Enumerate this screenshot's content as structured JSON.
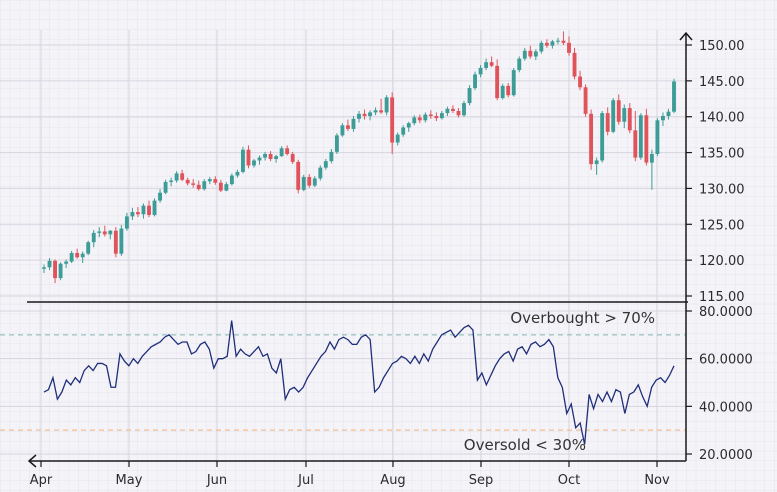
{
  "chart_data": [
    {
      "type": "candlestick",
      "colors": {
        "up": "#3d9c96",
        "down": "#e0535b"
      },
      "ylim": [
        115,
        152
      ],
      "y_ticks": [
        "150.00",
        "145.00",
        "140.00",
        "135.00",
        "130.00",
        "125.00",
        "120.00",
        "115.00"
      ],
      "x_ticks": [
        "Apr",
        "May",
        "Jun",
        "Jul",
        "Aug",
        "Sep",
        "Oct",
        "Nov"
      ],
      "grid": true,
      "candles": [
        [
          118.8,
          119.4,
          118.2,
          119.0
        ],
        [
          119.0,
          120.3,
          118.6,
          119.9
        ],
        [
          119.9,
          120.1,
          116.8,
          117.5
        ],
        [
          117.5,
          119.7,
          117.2,
          119.5
        ],
        [
          119.5,
          120.1,
          118.9,
          119.8
        ],
        [
          119.8,
          121.3,
          119.6,
          121.0
        ],
        [
          121.0,
          121.6,
          120.2,
          120.4
        ],
        [
          120.4,
          121.2,
          119.6,
          120.9
        ],
        [
          120.9,
          122.7,
          120.7,
          122.5
        ],
        [
          122.5,
          124.2,
          121.8,
          123.8
        ],
        [
          123.8,
          124.6,
          123.2,
          124.0
        ],
        [
          124.0,
          124.8,
          123.3,
          123.6
        ],
        [
          123.6,
          124.2,
          122.9,
          124.1
        ],
        [
          124.1,
          124.6,
          120.4,
          120.9
        ],
        [
          120.9,
          124.9,
          120.6,
          124.4
        ],
        [
          124.4,
          126.6,
          124.1,
          126.1
        ],
        [
          126.1,
          127.3,
          125.6,
          126.7
        ],
        [
          126.7,
          127.4,
          126.0,
          126.4
        ],
        [
          126.4,
          127.9,
          125.8,
          127.6
        ],
        [
          127.6,
          128.3,
          126.0,
          126.3
        ],
        [
          126.3,
          128.6,
          126.1,
          128.3
        ],
        [
          128.3,
          129.9,
          128.0,
          129.4
        ],
        [
          129.4,
          131.2,
          129.2,
          130.9
        ],
        [
          130.9,
          131.5,
          130.3,
          131.1
        ],
        [
          131.1,
          132.4,
          130.8,
          132.1
        ],
        [
          132.1,
          132.6,
          131.0,
          131.2
        ],
        [
          131.2,
          131.5,
          130.4,
          130.7
        ],
        [
          130.7,
          131.3,
          130.1,
          130.5
        ],
        [
          130.5,
          131.1,
          129.7,
          129.9
        ],
        [
          129.9,
          131.3,
          129.7,
          131.0
        ],
        [
          131.0,
          131.6,
          130.6,
          131.3
        ],
        [
          131.3,
          131.7,
          130.5,
          130.8
        ],
        [
          130.8,
          131.2,
          129.5,
          129.7
        ],
        [
          129.7,
          130.9,
          129.6,
          130.6
        ],
        [
          130.6,
          132.1,
          130.4,
          131.8
        ],
        [
          131.8,
          132.6,
          131.5,
          132.3
        ],
        [
          132.3,
          135.8,
          132.1,
          135.4
        ],
        [
          135.4,
          136.0,
          132.8,
          133.2
        ],
        [
          133.2,
          134.1,
          132.9,
          133.9
        ],
        [
          133.9,
          134.6,
          133.3,
          134.3
        ],
        [
          134.3,
          135.1,
          133.9,
          134.8
        ],
        [
          134.8,
          135.2,
          133.8,
          134.1
        ],
        [
          134.1,
          134.7,
          133.6,
          134.5
        ],
        [
          134.5,
          135.9,
          134.4,
          135.6
        ],
        [
          135.6,
          136.0,
          134.6,
          134.8
        ],
        [
          134.8,
          135.1,
          133.4,
          133.7
        ],
        [
          133.7,
          134.0,
          129.3,
          129.8
        ],
        [
          129.8,
          131.9,
          129.6,
          131.6
        ],
        [
          131.6,
          132.0,
          130.1,
          130.4
        ],
        [
          130.4,
          131.7,
          130.2,
          131.4
        ],
        [
          131.4,
          133.2,
          131.1,
          132.9
        ],
        [
          132.9,
          134.1,
          132.6,
          133.8
        ],
        [
          133.8,
          135.5,
          133.5,
          135.1
        ],
        [
          135.1,
          137.7,
          134.8,
          137.4
        ],
        [
          137.4,
          139.1,
          137.2,
          138.8
        ],
        [
          138.8,
          139.6,
          138.0,
          138.3
        ],
        [
          138.3,
          140.1,
          137.9,
          139.7
        ],
        [
          139.7,
          140.8,
          139.2,
          140.4
        ],
        [
          140.4,
          141.0,
          139.6,
          140.1
        ],
        [
          140.1,
          140.9,
          139.5,
          140.6
        ],
        [
          140.6,
          141.3,
          140.2,
          140.9
        ],
        [
          140.9,
          142.5,
          140.4,
          140.6
        ],
        [
          140.6,
          143.0,
          140.2,
          142.7
        ],
        [
          142.7,
          143.4,
          134.8,
          136.4
        ],
        [
          136.4,
          137.8,
          136.0,
          137.5
        ],
        [
          137.5,
          138.8,
          137.2,
          138.5
        ],
        [
          138.5,
          139.3,
          137.9,
          139.1
        ],
        [
          139.1,
          140.2,
          138.8,
          139.9
        ],
        [
          139.9,
          140.3,
          139.1,
          139.5
        ],
        [
          139.5,
          140.6,
          139.2,
          140.3
        ],
        [
          140.3,
          140.9,
          139.7,
          140.1
        ],
        [
          140.1,
          140.6,
          139.4,
          139.8
        ],
        [
          139.8,
          140.8,
          139.6,
          140.5
        ],
        [
          140.5,
          141.4,
          140.1,
          141.1
        ],
        [
          141.1,
          141.6,
          140.5,
          140.8
        ],
        [
          140.8,
          141.2,
          139.9,
          140.2
        ],
        [
          140.2,
          142.2,
          140.0,
          141.9
        ],
        [
          141.9,
          144.4,
          141.6,
          144.0
        ],
        [
          144.0,
          146.3,
          143.7,
          145.9
        ],
        [
          145.9,
          147.2,
          145.5,
          146.8
        ],
        [
          146.8,
          148.1,
          146.5,
          147.6
        ],
        [
          147.6,
          148.4,
          146.9,
          147.1
        ],
        [
          147.1,
          148.0,
          142.3,
          142.6
        ],
        [
          142.6,
          144.6,
          142.4,
          144.3
        ],
        [
          144.3,
          144.7,
          142.7,
          143.0
        ],
        [
          143.0,
          146.8,
          142.8,
          146.5
        ],
        [
          146.5,
          148.4,
          146.2,
          148.1
        ],
        [
          148.1,
          149.6,
          147.8,
          149.2
        ],
        [
          149.2,
          149.9,
          148.1,
          148.4
        ],
        [
          148.4,
          149.4,
          147.9,
          149.1
        ],
        [
          149.1,
          150.6,
          148.8,
          150.3
        ],
        [
          150.3,
          150.8,
          149.6,
          149.9
        ],
        [
          149.9,
          150.7,
          149.5,
          150.5
        ],
        [
          150.5,
          151.0,
          150.1,
          150.6
        ],
        [
          150.6,
          151.9,
          150.0,
          150.3
        ],
        [
          150.3,
          151.2,
          148.5,
          148.9
        ],
        [
          148.9,
          149.6,
          145.2,
          145.6
        ],
        [
          145.6,
          146.4,
          143.7,
          144.1
        ],
        [
          144.1,
          144.5,
          140.0,
          140.4
        ],
        [
          140.4,
          141.0,
          132.6,
          133.4
        ],
        [
          133.4,
          134.3,
          131.9,
          133.9
        ],
        [
          133.9,
          140.8,
          133.6,
          140.5
        ],
        [
          140.5,
          141.3,
          137.4,
          137.9
        ],
        [
          137.9,
          142.6,
          137.7,
          142.3
        ],
        [
          142.3,
          143.1,
          138.9,
          139.3
        ],
        [
          139.3,
          141.7,
          138.4,
          141.2
        ],
        [
          141.2,
          141.9,
          137.7,
          138.1
        ],
        [
          138.1,
          140.8,
          133.8,
          134.3
        ],
        [
          134.3,
          140.5,
          134.0,
          140.2
        ],
        [
          140.2,
          141.1,
          133.2,
          133.6
        ],
        [
          133.6,
          135.4,
          129.8,
          134.8
        ],
        [
          134.8,
          139.8,
          134.5,
          139.5
        ],
        [
          139.5,
          140.6,
          138.7,
          140.1
        ],
        [
          140.1,
          141.1,
          139.6,
          140.7
        ],
        [
          140.7,
          145.3,
          140.5,
          144.9
        ]
      ]
    },
    {
      "type": "line",
      "color": "#1f2f7a",
      "ylim": [
        18,
        82
      ],
      "y_ticks": [
        "80.0000",
        "60.0000",
        "40.0000",
        "20.0000"
      ],
      "x_ticks": [
        "Apr",
        "May",
        "Jun",
        "Jul",
        "Aug",
        "Sep",
        "Oct",
        "Nov"
      ],
      "grid": true,
      "reference_lines": [
        {
          "value": 70,
          "label": "Overbought > 70%",
          "color": "#7fb8b0"
        },
        {
          "value": 30,
          "label": "Oversold < 30%",
          "color": "#f1b27a"
        }
      ],
      "values": [
        46,
        47,
        52,
        43,
        46,
        51,
        49,
        52,
        50,
        55,
        57,
        55,
        58,
        58,
        57,
        48,
        48,
        62,
        59,
        57,
        60,
        58,
        61,
        63,
        65,
        66,
        67,
        69,
        70,
        68,
        66,
        67,
        67,
        62,
        63,
        66,
        67,
        64,
        56,
        60,
        60,
        61,
        76,
        61,
        64,
        62,
        61,
        63,
        65,
        61,
        62,
        56,
        54,
        60,
        43,
        47,
        48,
        46,
        48,
        52,
        55,
        58,
        61,
        63,
        67,
        64,
        68,
        69,
        68,
        66,
        66,
        69,
        70,
        68,
        46,
        48,
        52,
        55,
        58,
        59,
        61,
        60,
        58,
        61,
        58,
        62,
        59,
        64,
        67,
        70,
        71,
        72,
        69,
        71,
        73,
        74,
        72,
        51,
        54,
        49,
        53,
        57,
        60,
        62,
        63,
        59,
        64,
        65,
        62,
        66,
        67,
        65,
        66,
        68,
        65,
        52,
        48,
        37,
        41,
        31,
        33,
        24,
        45,
        39,
        45,
        42,
        46,
        42,
        47,
        46,
        37,
        45,
        46,
        49,
        44,
        40,
        48,
        51,
        52,
        50,
        53,
        57
      ]
    }
  ]
}
